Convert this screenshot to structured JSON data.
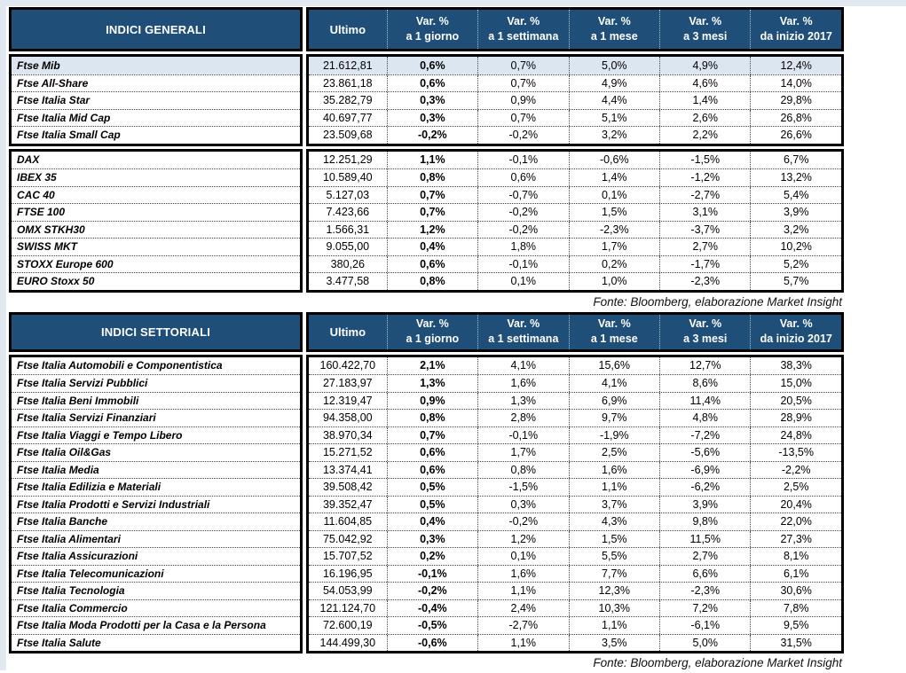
{
  "colors": {
    "header_bg": "#1F4E79",
    "header_text": "#FFFFFF",
    "highlight_row": "#DCE6F1",
    "border": "#000000"
  },
  "tables": [
    {
      "title": "INDICI GENERALI",
      "columns": [
        {
          "line1": "Ultimo",
          "line2": ""
        },
        {
          "line1": "Var. %",
          "line2": "a 1 giorno"
        },
        {
          "line1": "Var. %",
          "line2": "a 1 settimana"
        },
        {
          "line1": "Var. %",
          "line2": "a 1 mese"
        },
        {
          "line1": "Var. %",
          "line2": "a 3 mesi"
        },
        {
          "line1": "Var. %",
          "line2": "da inizio 2017"
        }
      ],
      "groups": [
        {
          "rows": [
            {
              "name": "Ftse Mib",
              "highlight": true,
              "values": [
                "21.612,81",
                "0,6%",
                "0,7%",
                "5,0%",
                "4,9%",
                "12,4%"
              ]
            },
            {
              "name": "Ftse All-Share",
              "values": [
                "23.861,18",
                "0,6%",
                "0,7%",
                "4,9%",
                "4,6%",
                "14,0%"
              ]
            },
            {
              "name": "Ftse Italia Star",
              "values": [
                "35.282,79",
                "0,3%",
                "0,9%",
                "4,4%",
                "1,4%",
                "29,8%"
              ]
            },
            {
              "name": "Ftse Italia Mid Cap",
              "values": [
                "40.697,77",
                "0,3%",
                "0,7%",
                "5,1%",
                "2,6%",
                "26,8%"
              ]
            },
            {
              "name": "Ftse Italia Small Cap",
              "values": [
                "23.509,68",
                "-0,2%",
                "-0,2%",
                "3,2%",
                "2,2%",
                "26,6%"
              ]
            }
          ]
        },
        {
          "rows": [
            {
              "name": "DAX",
              "values": [
                "12.251,29",
                "1,1%",
                "-0,1%",
                "-0,6%",
                "-1,5%",
                "6,7%"
              ]
            },
            {
              "name": "IBEX 35",
              "values": [
                "10.589,40",
                "0,8%",
                "0,6%",
                "1,4%",
                "-1,2%",
                "13,2%"
              ]
            },
            {
              "name": "CAC 40",
              "values": [
                "5.127,03",
                "0,7%",
                "-0,7%",
                "0,1%",
                "-2,7%",
                "5,4%"
              ]
            },
            {
              "name": "FTSE 100",
              "values": [
                "7.423,66",
                "0,7%",
                "-0,2%",
                "1,5%",
                "3,1%",
                "3,9%"
              ]
            },
            {
              "name": "OMX STKH30",
              "values": [
                "1.566,31",
                "1,2%",
                "-0,2%",
                "-2,3%",
                "-3,7%",
                "3,2%"
              ]
            },
            {
              "name": "SWISS MKT",
              "values": [
                "9.055,00",
                "0,4%",
                "1,8%",
                "1,7%",
                "2,7%",
                "10,2%"
              ]
            },
            {
              "name": "STOXX Europe 600",
              "values": [
                "380,26",
                "0,6%",
                "-0,1%",
                "0,2%",
                "-1,7%",
                "5,2%"
              ]
            },
            {
              "name": "EURO Stoxx 50",
              "values": [
                "3.477,58",
                "0,8%",
                "0,1%",
                "1,0%",
                "-2,3%",
                "5,7%"
              ]
            }
          ]
        }
      ],
      "source": "Fonte: Bloomberg, elaborazione Market Insight"
    },
    {
      "title": "INDICI SETTORIALI",
      "columns": [
        {
          "line1": "Ultimo",
          "line2": ""
        },
        {
          "line1": "Var. %",
          "line2": "a 1 giorno"
        },
        {
          "line1": "Var. %",
          "line2": "a 1 settimana"
        },
        {
          "line1": "Var. %",
          "line2": "a 1 mese"
        },
        {
          "line1": "Var. %",
          "line2": "a 3 mesi"
        },
        {
          "line1": "Var. %",
          "line2": "da inizio 2017"
        }
      ],
      "groups": [
        {
          "rows": [
            {
              "name": "Ftse Italia Automobili e Componentistica",
              "values": [
                "160.422,70",
                "2,1%",
                "4,1%",
                "15,6%",
                "12,7%",
                "38,3%"
              ]
            },
            {
              "name": "Ftse Italia Servizi Pubblici",
              "values": [
                "27.183,97",
                "1,3%",
                "1,6%",
                "4,1%",
                "8,6%",
                "15,0%"
              ]
            },
            {
              "name": "Ftse Italia Beni Immobili",
              "values": [
                "12.319,47",
                "0,9%",
                "1,3%",
                "6,9%",
                "11,4%",
                "20,5%"
              ]
            },
            {
              "name": "Ftse Italia Servizi Finanziari",
              "values": [
                "94.358,00",
                "0,8%",
                "2,8%",
                "9,7%",
                "4,8%",
                "28,9%"
              ]
            },
            {
              "name": "Ftse Italia Viaggi e Tempo Libero",
              "values": [
                "38.970,34",
                "0,7%",
                "-0,1%",
                "-1,9%",
                "-7,2%",
                "24,8%"
              ]
            },
            {
              "name": "Ftse Italia Oil&Gas",
              "values": [
                "15.271,52",
                "0,6%",
                "1,7%",
                "2,5%",
                "-5,6%",
                "-13,5%"
              ]
            },
            {
              "name": "Ftse Italia Media",
              "values": [
                "13.374,41",
                "0,6%",
                "0,8%",
                "1,6%",
                "-6,9%",
                "-2,2%"
              ]
            },
            {
              "name": "Ftse Italia Edilizia e Materiali",
              "values": [
                "39.508,42",
                "0,5%",
                "-1,5%",
                "1,1%",
                "-6,2%",
                "2,5%"
              ]
            },
            {
              "name": "Ftse Italia Prodotti e Servizi Industriali",
              "values": [
                "39.352,47",
                "0,5%",
                "0,3%",
                "3,7%",
                "3,9%",
                "20,4%"
              ]
            },
            {
              "name": "Ftse Italia Banche",
              "values": [
                "11.604,85",
                "0,4%",
                "-0,2%",
                "4,3%",
                "9,8%",
                "22,0%"
              ]
            },
            {
              "name": "Ftse Italia Alimentari",
              "values": [
                "75.042,92",
                "0,3%",
                "1,2%",
                "1,5%",
                "11,5%",
                "27,3%"
              ]
            },
            {
              "name": "Ftse Italia Assicurazioni",
              "values": [
                "15.707,52",
                "0,2%",
                "0,1%",
                "5,5%",
                "2,7%",
                "8,1%"
              ]
            },
            {
              "name": "Ftse Italia Telecomunicazioni",
              "values": [
                "16.196,95",
                "-0,1%",
                "1,6%",
                "7,7%",
                "6,6%",
                "6,1%"
              ]
            },
            {
              "name": "Ftse Italia Tecnologia",
              "values": [
                "54.053,99",
                "-0,2%",
                "1,1%",
                "12,3%",
                "-2,3%",
                "30,6%"
              ]
            },
            {
              "name": "Ftse Italia Commercio",
              "values": [
                "121.124,70",
                "-0,4%",
                "2,4%",
                "10,3%",
                "7,2%",
                "7,8%"
              ]
            },
            {
              "name": "Ftse Italia Moda Prodotti per la Casa e la Persona",
              "values": [
                "72.600,19",
                "-0,5%",
                "-2,7%",
                "1,1%",
                "-6,1%",
                "9,5%"
              ]
            },
            {
              "name": "Ftse Italia Salute",
              "values": [
                "144.499,30",
                "-0,6%",
                "1,1%",
                "3,5%",
                "5,0%",
                "31,5%"
              ]
            }
          ]
        }
      ],
      "source": "Fonte: Bloomberg, elaborazione Market Insight"
    }
  ]
}
